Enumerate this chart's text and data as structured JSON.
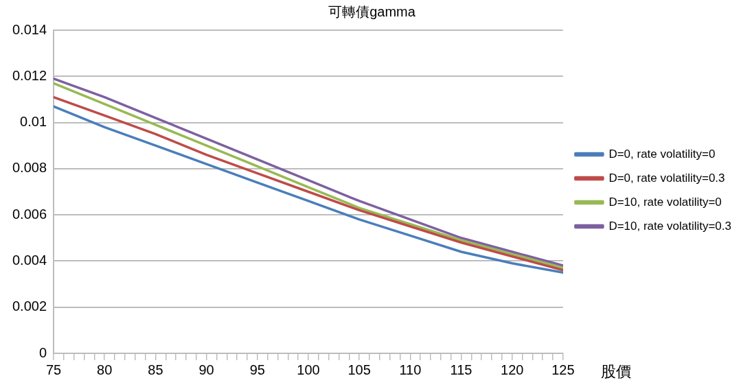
{
  "chart_data": {
    "type": "line",
    "title": "可轉債gamma",
    "xlabel": "股價",
    "xlim": [
      75,
      125
    ],
    "xticks": [
      75,
      {
        "value": 76,
        "label": null
      },
      {
        "value": 77,
        "label": null
      },
      {
        "value": 78,
        "label": null
      },
      {
        "value": 79,
        "label": null
      },
      80,
      {
        "value": 81,
        "label": null
      },
      {
        "value": 82,
        "label": null
      },
      {
        "value": 83,
        "label": null
      },
      {
        "value": 84,
        "label": null
      },
      85,
      {
        "value": 86,
        "label": null
      },
      {
        "value": 87,
        "label": null
      },
      {
        "value": 88,
        "label": null
      },
      {
        "value": 89,
        "label": null
      },
      90,
      {
        "value": 91,
        "label": null
      },
      {
        "value": 92,
        "label": null
      },
      {
        "value": 93,
        "label": null
      },
      {
        "value": 94,
        "label": null
      },
      95,
      {
        "value": 96,
        "label": null
      },
      {
        "value": 97,
        "label": null
      },
      {
        "value": 98,
        "label": null
      },
      {
        "value": 99,
        "label": null
      },
      100,
      {
        "value": 101,
        "label": null
      },
      {
        "value": 102,
        "label": null
      },
      {
        "value": 103,
        "label": null
      },
      {
        "value": 104,
        "label": null
      },
      105,
      {
        "value": 106,
        "label": null
      },
      {
        "value": 107,
        "label": null
      },
      {
        "value": 108,
        "label": null
      },
      {
        "value": 109,
        "label": null
      },
      110,
      {
        "value": 111,
        "label": null
      },
      {
        "value": 112,
        "label": null
      },
      {
        "value": 113,
        "label": null
      },
      {
        "value": 114,
        "label": null
      },
      115,
      {
        "value": 116,
        "label": null
      },
      {
        "value": 117,
        "label": null
      },
      {
        "value": 118,
        "label": null
      },
      {
        "value": 119,
        "label": null
      },
      120,
      {
        "value": 121,
        "label": null
      },
      {
        "value": 122,
        "label": null
      },
      {
        "value": 123,
        "label": null
      },
      {
        "value": 124,
        "label": null
      },
      125
    ],
    "ylim": [
      0,
      0.014
    ],
    "yticks": [
      0,
      0.002,
      0.004,
      0.006,
      0.008,
      0.01,
      0.012,
      0.014
    ],
    "grid": "y",
    "legend": "right",
    "marker": "none",
    "line_style": "solid",
    "x": [
      75,
      80,
      85,
      90,
      95,
      100,
      105,
      110,
      115,
      120,
      125
    ],
    "series": [
      {
        "name": "D=0, rate volatility=0",
        "color": "#4a7ebb",
        "values": [
          0.0107,
          0.0098,
          0.009,
          0.0082,
          0.0074,
          0.0066,
          0.0058,
          0.0051,
          0.0044,
          0.0039,
          0.0035
        ]
      },
      {
        "name": "D=0, rate volatility=0.3",
        "color": "#be4b48",
        "values": [
          0.0111,
          0.0103,
          0.0095,
          0.0086,
          0.0078,
          0.007,
          0.0062,
          0.0055,
          0.0048,
          0.0042,
          0.0036
        ]
      },
      {
        "name": "D=10, rate volatility=0",
        "color": "#98b954",
        "values": [
          0.0117,
          0.0108,
          0.0099,
          0.009,
          0.0081,
          0.0072,
          0.0063,
          0.0056,
          0.0049,
          0.0043,
          0.0037
        ]
      },
      {
        "name": "D=10, rate volatility=0.3",
        "color": "#7d60a0",
        "values": [
          0.0119,
          0.0111,
          0.0102,
          0.0093,
          0.0084,
          0.0075,
          0.0066,
          0.0058,
          0.005,
          0.0044,
          0.0038
        ]
      }
    ]
  }
}
